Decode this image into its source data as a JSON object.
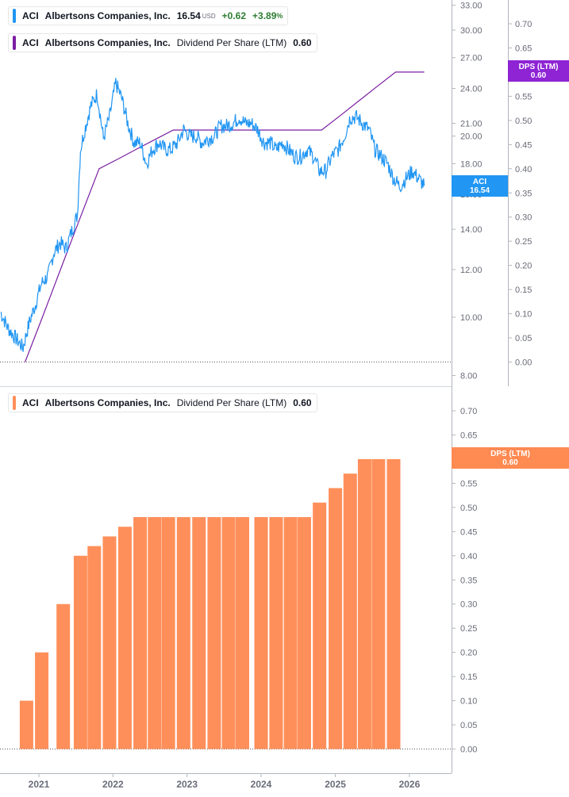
{
  "legend_price": {
    "ticker": "ACI",
    "name": "Albertsons Companies, Inc.",
    "price": "16.54",
    "currency": "USD",
    "change": "+0.62",
    "change_pct": "+3.89",
    "pct_sign": "%"
  },
  "legend_dps_line": {
    "ticker": "ACI",
    "name": "Albertsons Companies, Inc.",
    "metric": "Dividend Per Share (LTM)",
    "value": "0.60"
  },
  "legend_dps_bar": {
    "ticker": "ACI",
    "name": "Albertsons Companies, Inc.",
    "metric": "Dividend Per Share (LTM)",
    "value": "0.60"
  },
  "tags": {
    "price_tag_name": "ACI",
    "price_tag_value": "16.54",
    "dps_tag_name": "DPS (LTM)",
    "dps_tag_value": "0.60",
    "bar_tag_name": "DPS (LTM)",
    "bar_tag_value": "0.60"
  },
  "colors": {
    "price_line": "#2196f3",
    "dps_line": "#7b1fa2",
    "bars": "#ff8f5a",
    "price_tag": "#2196f3",
    "dps_tag": "#8e24d4",
    "bar_tag": "#ff8a52",
    "axis": "#b2b5be",
    "text": "#131722",
    "tick_text": "#6a6d78"
  },
  "chart_data": [
    {
      "type": "line",
      "y_scale": "log",
      "title": "",
      "xlabel": "",
      "ylabel": "",
      "ylim": [
        8.0,
        33.0
      ],
      "y_ticks": [
        "33.00",
        "30.00",
        "27.00",
        "24.00",
        "21.00",
        "20.00",
        "18.00",
        "16.00",
        "14.00",
        "12.00",
        "10.00",
        "8.00"
      ],
      "x_ticks": [
        "2021",
        "2022",
        "2023",
        "2024",
        "2025",
        "2026"
      ],
      "series": [
        {
          "name": "ACI",
          "x": [
            "2020-06-26",
            "2020-08-01",
            "2020-09-01",
            "2020-10-15",
            "2020-11-15",
            "2020-12-15",
            "2021-01-15",
            "2021-02-15",
            "2021-03-15",
            "2021-04-15",
            "2021-05-15",
            "2021-06-15",
            "2021-07-10",
            "2021-07-25",
            "2021-08-15",
            "2021-09-15",
            "2021-10-15",
            "2021-11-15",
            "2021-12-15",
            "2022-01-15",
            "2022-02-15",
            "2022-03-15",
            "2022-04-15",
            "2022-05-15",
            "2022-06-15",
            "2022-07-15",
            "2022-08-15",
            "2022-09-15",
            "2022-10-15",
            "2022-11-15",
            "2022-12-15",
            "2023-01-15",
            "2023-02-15",
            "2023-03-15",
            "2023-04-15",
            "2023-05-15",
            "2023-06-15",
            "2023-07-15",
            "2023-08-15",
            "2023-09-15",
            "2023-10-15",
            "2023-11-15",
            "2023-12-15",
            "2024-01-15",
            "2024-02-15",
            "2024-03-15",
            "2024-04-15",
            "2024-05-15",
            "2024-06-15",
            "2024-07-15",
            "2024-08-15",
            "2024-09-15",
            "2024-10-15",
            "2024-11-15",
            "2024-12-15",
            "2025-01-15",
            "2025-02-15",
            "2025-03-15",
            "2025-04-15",
            "2025-05-15",
            "2025-06-15",
            "2025-07-15",
            "2025-08-15",
            "2025-09-15",
            "2025-10-15",
            "2025-11-15",
            "2025-12-15",
            "2026-01-15",
            "2026-02-15",
            "2026-03-15"
          ],
          "values": [
            10.2,
            9.6,
            9.3,
            8.9,
            9.8,
            10.5,
            11.4,
            11.7,
            12.8,
            13.3,
            13.0,
            14.0,
            14.8,
            19.0,
            20.5,
            22.5,
            23.5,
            19.8,
            21.5,
            24.5,
            23.0,
            21.0,
            19.5,
            19.5,
            18.0,
            19.0,
            19.5,
            19.0,
            19.0,
            19.5,
            20.5,
            20.0,
            20.0,
            19.5,
            19.8,
            20.0,
            20.8,
            20.8,
            21.0,
            21.5,
            21.0,
            21.0,
            20.5,
            19.5,
            19.5,
            19.0,
            19.5,
            19.0,
            18.5,
            18.5,
            19.0,
            18.5,
            17.5,
            17.5,
            18.5,
            19.0,
            20.0,
            21.5,
            21.5,
            21.0,
            20.5,
            19.0,
            18.5,
            18.0,
            17.0,
            16.5,
            17.0,
            17.5,
            17.0,
            16.54
          ]
        },
        {
          "name": "Dividend Per Share (LTM)",
          "y_scale": "linear",
          "ylim": [
            0.0,
            0.7
          ],
          "y_ticks": [
            "0.70",
            "0.65",
            "0.60",
            "0.55",
            "0.50",
            "0.45",
            "0.40",
            "0.35",
            "0.30",
            "0.25",
            "0.20",
            "0.15",
            "0.10",
            "0.05",
            "0.00"
          ],
          "x": [
            "2020-10-25",
            "2021-01-25",
            "2021-04-25",
            "2021-07-25",
            "2021-10-25",
            "2022-01-25",
            "2022-04-25",
            "2022-07-25",
            "2022-10-25",
            "2023-01-25",
            "2023-04-25",
            "2023-07-25",
            "2023-10-25",
            "2024-01-25",
            "2024-04-25",
            "2024-07-25",
            "2024-10-25",
            "2025-01-25",
            "2025-04-25",
            "2025-07-25",
            "2025-10-25",
            "2026-01-25",
            "2026-03-15"
          ],
          "values": [
            0.0,
            0.1,
            0.2,
            0.3,
            0.4,
            0.42,
            0.44,
            0.46,
            0.48,
            0.48,
            0.48,
            0.48,
            0.48,
            0.48,
            0.48,
            0.48,
            0.48,
            0.51,
            0.54,
            0.57,
            0.6,
            0.6,
            0.6
          ]
        }
      ]
    },
    {
      "type": "bar",
      "title": "",
      "xlabel": "",
      "ylabel": "",
      "ylim": [
        0.0,
        0.7
      ],
      "y_ticks": [
        "0.70",
        "0.65",
        "0.60",
        "0.55",
        "0.50",
        "0.45",
        "0.40",
        "0.35",
        "0.30",
        "0.25",
        "0.20",
        "0.15",
        "0.10",
        "0.05",
        "0.00"
      ],
      "x_ticks": [
        "2021",
        "2022",
        "2023",
        "2024",
        "2025",
        "2026"
      ],
      "series": [
        {
          "name": "Dividend Per Share (LTM)",
          "x": [
            "2020-11-01",
            "2021-01-15",
            "2021-05-01",
            "2021-07-25",
            "2021-10-01",
            "2021-12-15",
            "2022-03-01",
            "2022-05-15",
            "2022-07-25",
            "2022-10-01",
            "2022-12-15",
            "2023-03-01",
            "2023-05-15",
            "2023-07-25",
            "2023-10-01",
            "2024-01-01",
            "2024-03-15",
            "2024-05-25",
            "2024-08-01",
            "2024-10-15",
            "2025-01-01",
            "2025-03-15",
            "2025-05-25",
            "2025-08-01",
            "2025-10-15"
          ],
          "values": [
            0.1,
            0.2,
            0.3,
            0.4,
            0.42,
            0.44,
            0.46,
            0.48,
            0.48,
            0.48,
            0.48,
            0.48,
            0.48,
            0.48,
            0.48,
            0.48,
            0.48,
            0.48,
            0.48,
            0.51,
            0.54,
            0.57,
            0.6,
            0.6,
            0.6
          ]
        }
      ]
    }
  ]
}
